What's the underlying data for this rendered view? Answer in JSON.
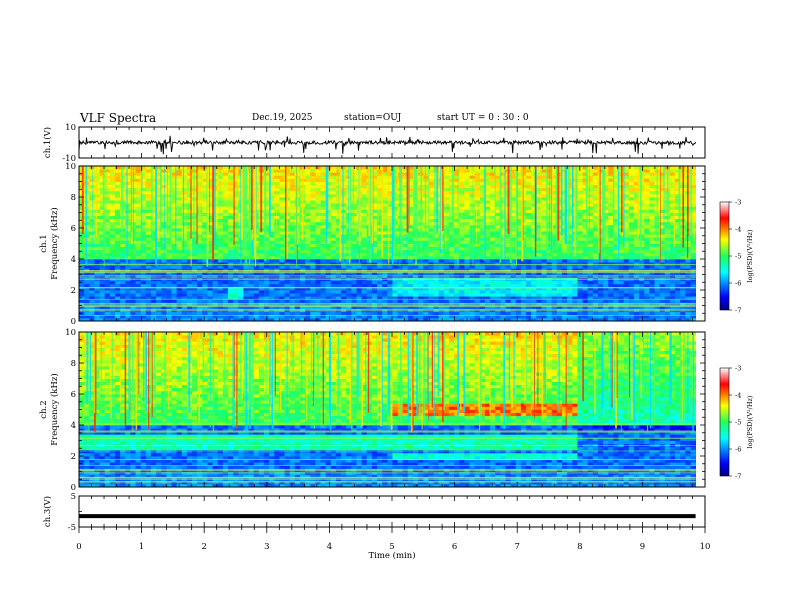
{
  "header": {
    "title": "VLF Spectra",
    "date": "Dec.19, 2025",
    "station": "station=OUJ",
    "start": "start  UT =   0 : 30 : 0"
  },
  "chart_data": [
    {
      "type": "line",
      "name": "ch1-waveform",
      "ylabel": "ch.1(V)",
      "ylim": [
        -10,
        10
      ],
      "yticks": [
        "10",
        "-10"
      ],
      "baseline": 0,
      "note": "broadband noisy waveform near 0 V with short negative spikes"
    },
    {
      "type": "heatmap",
      "name": "ch1-spectrogram",
      "ylabel_line1": "ch.1",
      "ylabel_line2": "Frequency (kHz)",
      "ylim": [
        0,
        10
      ],
      "yticks": [
        "0",
        "2",
        "4",
        "6",
        "8",
        "10"
      ],
      "colorbar": {
        "label": "log(PSD)(V²/Hz)",
        "range": [
          -7,
          -3
        ],
        "ticks": [
          "-3",
          "-4",
          "-5",
          "-6",
          "-7"
        ]
      }
    },
    {
      "type": "heatmap",
      "name": "ch2-spectrogram",
      "ylabel_line1": "ch.2",
      "ylabel_line2": "Frequency (kHz)",
      "ylim": [
        0,
        10
      ],
      "yticks": [
        "0",
        "2",
        "4",
        "6",
        "8",
        "10"
      ],
      "colorbar": {
        "label": "log(PSD)(V²/Hz)",
        "range": [
          -7,
          -3
        ],
        "ticks": [
          "-3",
          "-4",
          "-5",
          "-6",
          "-7"
        ]
      }
    },
    {
      "type": "line",
      "name": "ch3-waveform",
      "ylabel": "ch.3(V)",
      "ylim": [
        -5,
        5
      ],
      "yticks": [
        "5",
        "-5"
      ],
      "baseline": -1.5,
      "note": "flat thick line at about -1.5 V"
    }
  ],
  "xaxis": {
    "label": "Time (min)",
    "range": [
      0,
      10
    ],
    "ticks": [
      "0",
      "1",
      "2",
      "3",
      "4",
      "5",
      "6",
      "7",
      "8",
      "9",
      "10"
    ],
    "data_end": 9.85
  }
}
